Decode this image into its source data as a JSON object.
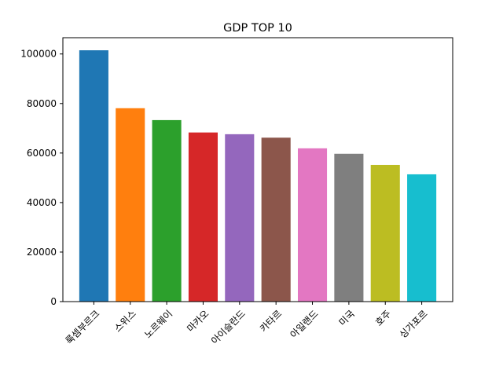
{
  "chart_data": {
    "type": "bar",
    "title": "GDP TOP 10",
    "xlabel": "",
    "ylabel": "",
    "categories": [
      "룩셈부르크",
      "스위스",
      "노르웨이",
      "마카오",
      "아이슬란드",
      "카타르",
      "아일랜드",
      "미국",
      "호주",
      "싱가포르"
    ],
    "values": [
      101500,
      78100,
      73300,
      68300,
      67600,
      66200,
      61900,
      59700,
      55200,
      51400
    ],
    "colors": [
      "#1f77b4",
      "#ff7f0e",
      "#2ca02c",
      "#d62728",
      "#9467bd",
      "#8c564b",
      "#e377c2",
      "#7f7f7f",
      "#bcbd22",
      "#17becf"
    ],
    "ylim": [
      0,
      106575
    ],
    "yticks": [
      "0",
      "20000",
      "40000",
      "60000",
      "80000",
      "100000"
    ],
    "grid": false,
    "legend": "none"
  }
}
